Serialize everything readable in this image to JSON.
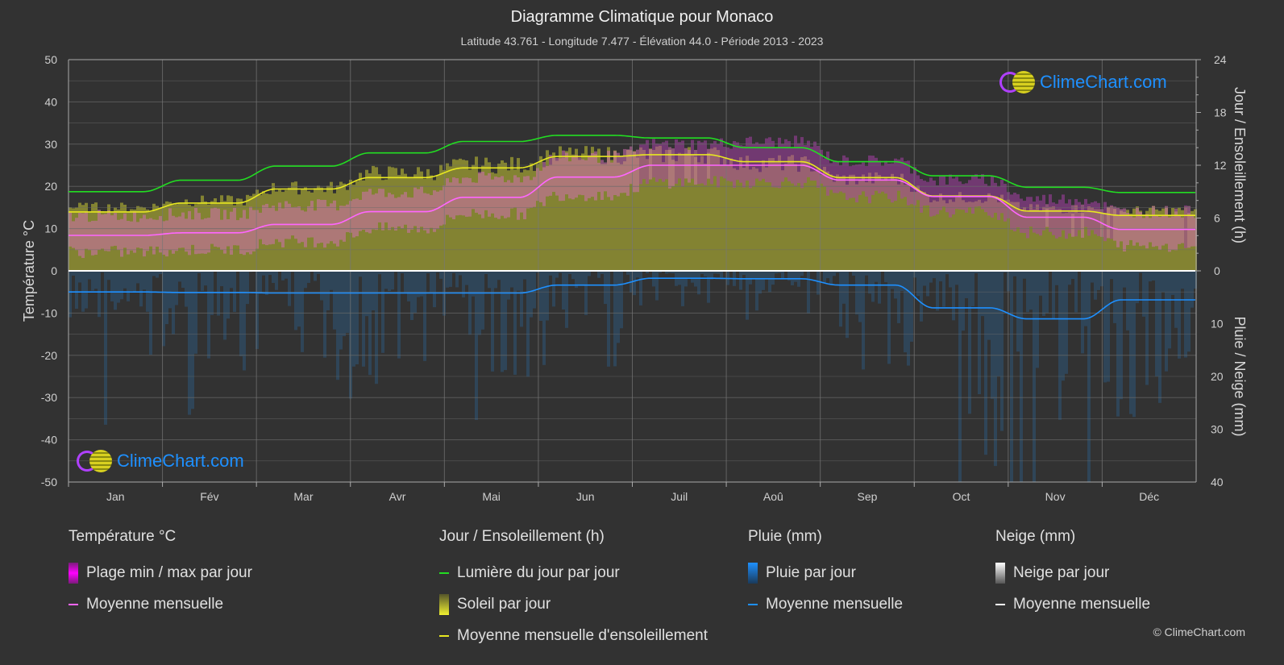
{
  "header": {
    "title": "Diagramme Climatique pour Monaco",
    "subtitle": "Latitude 43.761 - Longitude 7.477 - Élévation 44.0 - Période 2013 - 2023"
  },
  "logo_text": "ClimeChart.com",
  "copyright": "© ClimeChart.com",
  "chart_data": {
    "type": "line",
    "title": "Diagramme Climatique pour Monaco",
    "categories": [
      "Jan",
      "Fév",
      "Mar",
      "Avr",
      "Mai",
      "Jun",
      "Juil",
      "Aoû",
      "Sep",
      "Oct",
      "Nov",
      "Déc"
    ],
    "axes": {
      "left": {
        "label": "Température °C",
        "range": [
          -50,
          50
        ],
        "ticks": [
          50,
          40,
          30,
          20,
          10,
          0,
          -10,
          -20,
          -30,
          -40,
          -50
        ]
      },
      "right_top": {
        "label": "Jour / Ensoleillement (h)",
        "range": [
          0,
          24
        ],
        "ticks": [
          24,
          18,
          12,
          6,
          0
        ]
      },
      "right_bottom": {
        "label": "Pluie / Neige (mm)",
        "range": [
          0,
          40
        ],
        "ticks": [
          0,
          10,
          20,
          30,
          40
        ]
      }
    },
    "grid": true,
    "series": [
      {
        "name": "Moyenne mensuelle",
        "group": "Température °C",
        "unit": "°C",
        "color": "#ff66ff",
        "values": [
          8.4,
          9.0,
          11.0,
          14.0,
          17.4,
          22.2,
          25.0,
          25.0,
          21.5,
          17.6,
          12.7,
          9.8
        ]
      },
      {
        "name": "Plage min / max par jour",
        "group": "Température °C",
        "unit": "°C",
        "color": "#e020e0",
        "max": [
          13,
          13.5,
          15.5,
          18.5,
          22,
          27,
          30,
          30.5,
          26,
          21.5,
          17,
          14
        ],
        "min": [
          4.5,
          5,
          7,
          10,
          13.5,
          18,
          21,
          21,
          17.5,
          14,
          9,
          6
        ]
      },
      {
        "name": "Lumière du jour par jour",
        "group": "Jour / Ensoleillement (h)",
        "unit": "h",
        "color": "#22dd22",
        "values": [
          9.0,
          10.3,
          11.9,
          13.4,
          14.7,
          15.4,
          15.1,
          14.0,
          12.4,
          10.8,
          9.5,
          8.9
        ]
      },
      {
        "name": "Soleil par jour",
        "group": "Jour / Ensoleillement (h)",
        "unit": "h",
        "color": "#c8c832",
        "values": [
          7.8,
          8.6,
          10.2,
          12.0,
          13.0,
          14.2,
          14.3,
          13.2,
          11.3,
          9.0,
          7.6,
          7.4
        ]
      },
      {
        "name": "Moyenne mensuelle d'ensoleillement",
        "group": "Jour / Ensoleillement (h)",
        "unit": "h",
        "color": "#e8e820",
        "values": [
          6.7,
          7.7,
          9.3,
          10.6,
          11.7,
          13.0,
          13.2,
          12.4,
          10.6,
          8.5,
          6.8,
          6.3
        ]
      },
      {
        "name": "Pluie par jour",
        "group": "Pluie (mm)",
        "unit": "mm",
        "color": "#1e90ff"
      },
      {
        "name": "Moyenne mensuelle",
        "group": "Pluie (mm)",
        "unit": "mm",
        "color": "#1e90ff",
        "values": [
          4.0,
          4.1,
          4.2,
          4.2,
          4.2,
          2.7,
          1.4,
          1.5,
          2.7,
          7.0,
          9.1,
          5.5
        ]
      },
      {
        "name": "Neige par jour",
        "group": "Neige (mm)",
        "unit": "mm",
        "color": "#ffffff"
      },
      {
        "name": "Moyenne mensuelle",
        "group": "Neige (mm)",
        "unit": "mm",
        "color": "#ffffff",
        "values": [
          0,
          0,
          0,
          0,
          0,
          0,
          0,
          0,
          0,
          0,
          0,
          0
        ]
      }
    ]
  },
  "legend": {
    "temperature": {
      "title": "Température °C",
      "items": [
        "Plage min / max par jour",
        "Moyenne mensuelle"
      ]
    },
    "sun": {
      "title": "Jour / Ensoleillement (h)",
      "items": [
        "Lumière du jour par jour",
        "Soleil par jour",
        "Moyenne mensuelle d'ensoleillement"
      ]
    },
    "rain": {
      "title": "Pluie (mm)",
      "items": [
        "Pluie par jour",
        "Moyenne mensuelle"
      ]
    },
    "snow": {
      "title": "Neige (mm)",
      "items": [
        "Neige par jour",
        "Moyenne mensuelle"
      ]
    }
  },
  "colors": {
    "background": "#323232",
    "grid": "#5a5a5a",
    "temp_mean": "#ff66ff",
    "daylight": "#22dd22",
    "sun_mean": "#e8e820",
    "rain": "#1e90ff",
    "snow": "#ffffff"
  }
}
